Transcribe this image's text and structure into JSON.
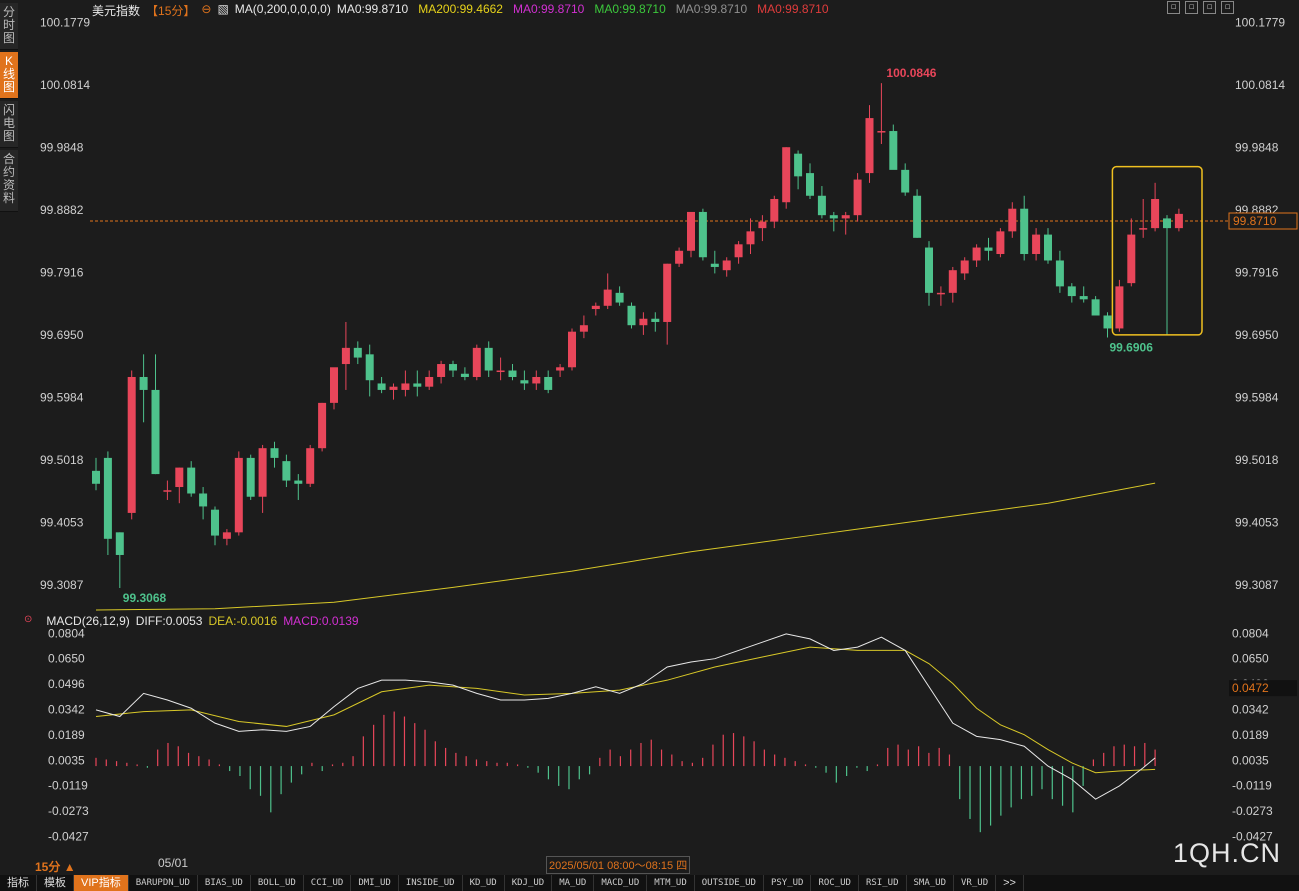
{
  "header": {
    "title": "美元指数",
    "timeframe": "【15分】",
    "ma_params": "MA(0,200,0,0,0,0)",
    "ma_values": [
      {
        "text": "MA0:99.8710",
        "color": "#e8e8e8"
      },
      {
        "text": "MA200:99.4662",
        "color": "#e6d21a"
      },
      {
        "text": "MA0:99.8710",
        "color": "#d230d2"
      },
      {
        "text": "MA0:99.8710",
        "color": "#3cc83c"
      },
      {
        "text": "MA0:99.8710",
        "color": "#909090"
      },
      {
        "text": "MA0:99.8710",
        "color": "#e03c3c"
      }
    ]
  },
  "side_tabs": [
    {
      "label": "分时图",
      "active": false
    },
    {
      "label": "K线图",
      "active": true
    },
    {
      "label": "闪电图",
      "active": false
    },
    {
      "label": "合约资料",
      "active": false
    }
  ],
  "window_controls": [
    "▫",
    "▫",
    "▫",
    "▫"
  ],
  "price_axis": {
    "left_ticks": [
      "100.1779",
      "100.0814",
      "99.9848",
      "99.8882",
      "99.7916",
      "99.6950",
      "99.5984",
      "99.5018",
      "99.4053",
      "99.3087"
    ],
    "right_ticks": [
      "100.1779",
      "100.0814",
      "99.9848",
      "99.8882",
      "99.7916",
      "99.6950",
      "99.5984",
      "99.5018",
      "99.4053",
      "99.3087"
    ],
    "current_price": "99.8710"
  },
  "annotations": {
    "high": "100.0846",
    "low": "99.6906",
    "low_left": "99.3068"
  },
  "macd_header": {
    "params": "MACD(26,12,9)",
    "diff": "DIFF:0.0053",
    "dea": "DEA:-0.0016",
    "macd": "MACD:0.0139"
  },
  "macd_axis": {
    "left_ticks": [
      "0.0804",
      "0.0650",
      "0.0496",
      "0.0342",
      "0.0189",
      "0.0035",
      "-0.0119",
      "-0.0273",
      "-0.0427"
    ],
    "right_ticks": [
      "0.0804",
      "0.0650",
      "0.0496",
      "0.0342",
      "0.0189",
      "0.0035",
      "-0.0119",
      "-0.0273",
      "-0.0427"
    ],
    "current": "0.0472"
  },
  "time_axis": {
    "tick": "05/01",
    "cursor": "2025/05/01 08:00～08:15 四"
  },
  "timeframe_label": "15分",
  "bottom_tabs": [
    {
      "label": "指标",
      "active": false,
      "mono": false
    },
    {
      "label": "模板",
      "active": false,
      "mono": false
    },
    {
      "label": "VIP指标",
      "active": true,
      "mono": false
    },
    {
      "label": "BARUPDN_UD",
      "active": false,
      "mono": true
    },
    {
      "label": "BIAS_UD",
      "active": false,
      "mono": true
    },
    {
      "label": "BOLL_UD",
      "active": false,
      "mono": true
    },
    {
      "label": "CCI_UD",
      "active": false,
      "mono": true
    },
    {
      "label": "DMI_UD",
      "active": false,
      "mono": true
    },
    {
      "label": "INSIDE_UD",
      "active": false,
      "mono": true
    },
    {
      "label": "KD_UD",
      "active": false,
      "mono": true
    },
    {
      "label": "KDJ_UD",
      "active": false,
      "mono": true
    },
    {
      "label": "MA_UD",
      "active": false,
      "mono": true
    },
    {
      "label": "MACD_UD",
      "active": false,
      "mono": true
    },
    {
      "label": "MTM_UD",
      "active": false,
      "mono": true
    },
    {
      "label": "OUTSIDE_UD",
      "active": false,
      "mono": true
    },
    {
      "label": "PSY_UD",
      "active": false,
      "mono": true
    },
    {
      "label": "ROC_UD",
      "active": false,
      "mono": true
    },
    {
      "label": "RSI_UD",
      "active": false,
      "mono": true
    },
    {
      "label": "SMA_UD",
      "active": false,
      "mono": true
    },
    {
      "label": "VR_UD",
      "active": false,
      "mono": true
    },
    {
      "label": ">>",
      "active": false,
      "mono": false
    }
  ],
  "watermark": "1QH.CN",
  "colors": {
    "up": "#e8465a",
    "down": "#4ec28c",
    "ma200": "#d8c828",
    "diff": "#e8e8e8",
    "dea": "#d8c828",
    "accent": "#e0731c",
    "highlight_box": "#f0c020"
  },
  "chart_data": [
    {
      "type": "candlestick",
      "title": "美元指数 15分",
      "ylim": [
        99.27,
        100.18
      ],
      "candles": [
        [
          99.485,
          99.505,
          99.455,
          99.465
        ],
        [
          99.505,
          99.515,
          99.355,
          99.38
        ],
        [
          99.39,
          99.39,
          99.304,
          99.355
        ],
        [
          99.42,
          99.64,
          99.41,
          99.63
        ],
        [
          99.63,
          99.665,
          99.56,
          99.61
        ],
        [
          99.61,
          99.665,
          99.48,
          99.48
        ],
        [
          99.455,
          99.47,
          99.44,
          99.455
        ],
        [
          99.46,
          99.49,
          99.435,
          99.49
        ],
        [
          99.49,
          99.5,
          99.445,
          99.45
        ],
        [
          99.45,
          99.46,
          99.41,
          99.43
        ],
        [
          99.425,
          99.43,
          99.37,
          99.385
        ],
        [
          99.38,
          99.395,
          99.37,
          99.39
        ],
        [
          99.39,
          99.515,
          99.385,
          99.505
        ],
        [
          99.505,
          99.51,
          99.44,
          99.445
        ],
        [
          99.445,
          99.525,
          99.42,
          99.52
        ],
        [
          99.52,
          99.53,
          99.49,
          99.505
        ],
        [
          99.5,
          99.51,
          99.46,
          99.47
        ],
        [
          99.47,
          99.48,
          99.44,
          99.465
        ],
        [
          99.465,
          99.525,
          99.46,
          99.52
        ],
        [
          99.52,
          99.59,
          99.515,
          99.59
        ],
        [
          99.59,
          99.64,
          99.58,
          99.645
        ],
        [
          99.65,
          99.715,
          99.61,
          99.675
        ],
        [
          99.675,
          99.685,
          99.65,
          99.66
        ],
        [
          99.665,
          99.68,
          99.6,
          99.625
        ],
        [
          99.62,
          99.63,
          99.605,
          99.61
        ],
        [
          99.61,
          99.62,
          99.595,
          99.615
        ],
        [
          99.61,
          99.64,
          99.6,
          99.62
        ],
        [
          99.62,
          99.64,
          99.6,
          99.615
        ],
        [
          99.615,
          99.64,
          99.61,
          99.63
        ],
        [
          99.63,
          99.655,
          99.62,
          99.65
        ],
        [
          99.65,
          99.655,
          99.63,
          99.64
        ],
        [
          99.635,
          99.645,
          99.625,
          99.63
        ],
        [
          99.63,
          99.68,
          99.625,
          99.675
        ],
        [
          99.675,
          99.685,
          99.63,
          99.64
        ],
        [
          99.64,
          99.66,
          99.625,
          99.64
        ],
        [
          99.64,
          99.65,
          99.625,
          99.63
        ],
        [
          99.625,
          99.64,
          99.61,
          99.62
        ],
        [
          99.62,
          99.64,
          99.61,
          99.63
        ],
        [
          99.63,
          99.64,
          99.605,
          99.61
        ],
        [
          99.64,
          99.65,
          99.63,
          99.645
        ],
        [
          99.645,
          99.705,
          99.64,
          99.7
        ],
        [
          99.7,
          99.725,
          99.69,
          99.71
        ],
        [
          99.735,
          99.745,
          99.725,
          99.74
        ],
        [
          99.74,
          99.79,
          99.735,
          99.765
        ],
        [
          99.76,
          99.77,
          99.74,
          99.745
        ],
        [
          99.74,
          99.745,
          99.705,
          99.71
        ],
        [
          99.71,
          99.73,
          99.695,
          99.72
        ],
        [
          99.72,
          99.73,
          99.7,
          99.715
        ],
        [
          99.715,
          99.805,
          99.68,
          99.805
        ],
        [
          99.805,
          99.83,
          99.8,
          99.825
        ],
        [
          99.825,
          99.885,
          99.815,
          99.885
        ],
        [
          99.885,
          99.89,
          99.81,
          99.815
        ],
        [
          99.805,
          99.825,
          99.79,
          99.8
        ],
        [
          99.795,
          99.815,
          99.785,
          99.81
        ],
        [
          99.815,
          99.84,
          99.805,
          99.835
        ],
        [
          99.835,
          99.875,
          99.82,
          99.855
        ],
        [
          99.86,
          99.88,
          99.84,
          99.87
        ],
        [
          99.87,
          99.91,
          99.86,
          99.905
        ],
        [
          99.9,
          99.985,
          99.89,
          99.985
        ],
        [
          99.975,
          99.98,
          99.92,
          99.94
        ],
        [
          99.945,
          99.96,
          99.905,
          99.91
        ],
        [
          99.91,
          99.925,
          99.875,
          99.88
        ],
        [
          99.88,
          99.885,
          99.855,
          99.875
        ],
        [
          99.875,
          99.885,
          99.85,
          99.88
        ],
        [
          99.88,
          99.945,
          99.87,
          99.935
        ],
        [
          99.945,
          100.05,
          99.93,
          100.03
        ],
        [
          100.01,
          100.084,
          99.99,
          100.01
        ],
        [
          100.01,
          100.02,
          99.955,
          99.95
        ],
        [
          99.95,
          99.96,
          99.91,
          99.915
        ],
        [
          99.91,
          99.92,
          99.845,
          99.845
        ],
        [
          99.83,
          99.84,
          99.74,
          99.76
        ],
        [
          99.76,
          99.77,
          99.74,
          99.76
        ],
        [
          99.76,
          99.8,
          99.745,
          99.795
        ],
        [
          99.79,
          99.815,
          99.78,
          99.81
        ],
        [
          99.81,
          99.835,
          99.8,
          99.83
        ],
        [
          99.83,
          99.845,
          99.81,
          99.825
        ],
        [
          99.82,
          99.86,
          99.815,
          99.855
        ],
        [
          99.855,
          99.9,
          99.845,
          99.89
        ],
        [
          99.89,
          99.91,
          99.81,
          99.82
        ],
        [
          99.82,
          99.86,
          99.81,
          99.85
        ],
        [
          99.85,
          99.86,
          99.805,
          99.81
        ],
        [
          99.81,
          99.825,
          99.76,
          99.77
        ],
        [
          99.77,
          99.775,
          99.745,
          99.755
        ],
        [
          99.755,
          99.77,
          99.745,
          99.75
        ],
        [
          99.75,
          99.755,
          99.725,
          99.725
        ],
        [
          99.725,
          99.73,
          99.691,
          99.705
        ],
        [
          99.705,
          99.78,
          99.7,
          99.77
        ],
        [
          99.775,
          99.875,
          99.77,
          99.85
        ],
        [
          99.86,
          99.905,
          99.845,
          99.86
        ],
        [
          99.86,
          99.93,
          99.855,
          99.905
        ],
        [
          99.875,
          99.88,
          99.695,
          99.86
        ],
        [
          99.86,
          99.89,
          99.855,
          99.882
        ]
      ]
    },
    {
      "type": "line",
      "name": "MA200",
      "points": [
        [
          0,
          99.27
        ],
        [
          10,
          99.272
        ],
        [
          20,
          99.282
        ],
        [
          30,
          99.305
        ],
        [
          40,
          99.33
        ],
        [
          50,
          99.36
        ],
        [
          60,
          99.385
        ],
        [
          70,
          99.41
        ],
        [
          80,
          99.435
        ],
        [
          89,
          99.466
        ]
      ]
    },
    {
      "type": "macd",
      "ylim": [
        -0.052,
        0.086
      ],
      "diff": [
        [
          0,
          0.034
        ],
        [
          2,
          0.03
        ],
        [
          4,
          0.044
        ],
        [
          6,
          0.04
        ],
        [
          8,
          0.035
        ],
        [
          10,
          0.026
        ],
        [
          12,
          0.021
        ],
        [
          14,
          0.022
        ],
        [
          16,
          0.021
        ],
        [
          18,
          0.024
        ],
        [
          20,
          0.036
        ],
        [
          22,
          0.047
        ],
        [
          24,
          0.052
        ],
        [
          26,
          0.052
        ],
        [
          28,
          0.051
        ],
        [
          30,
          0.049
        ],
        [
          32,
          0.044
        ],
        [
          34,
          0.04
        ],
        [
          36,
          0.04
        ],
        [
          38,
          0.041
        ],
        [
          40,
          0.044
        ],
        [
          42,
          0.048
        ],
        [
          44,
          0.044
        ],
        [
          46,
          0.05
        ],
        [
          48,
          0.06
        ],
        [
          50,
          0.063
        ],
        [
          52,
          0.065
        ],
        [
          54,
          0.07
        ],
        [
          56,
          0.075
        ],
        [
          58,
          0.08
        ],
        [
          60,
          0.077
        ],
        [
          62,
          0.07
        ],
        [
          64,
          0.072
        ],
        [
          66,
          0.078
        ],
        [
          68,
          0.07
        ],
        [
          70,
          0.048
        ],
        [
          72,
          0.026
        ],
        [
          74,
          0.018
        ],
        [
          76,
          0.016
        ],
        [
          78,
          0.012
        ],
        [
          80,
          0.0
        ],
        [
          82,
          -0.008
        ],
        [
          84,
          -0.02
        ],
        [
          86,
          -0.012
        ],
        [
          88,
          -0.001
        ],
        [
          89,
          0.005
        ]
      ],
      "dea": [
        [
          0,
          0.03
        ],
        [
          4,
          0.033
        ],
        [
          8,
          0.034
        ],
        [
          12,
          0.027
        ],
        [
          16,
          0.024
        ],
        [
          20,
          0.031
        ],
        [
          24,
          0.045
        ],
        [
          28,
          0.049
        ],
        [
          32,
          0.047
        ],
        [
          36,
          0.043
        ],
        [
          40,
          0.044
        ],
        [
          44,
          0.046
        ],
        [
          48,
          0.052
        ],
        [
          52,
          0.06
        ],
        [
          56,
          0.066
        ],
        [
          60,
          0.072
        ],
        [
          64,
          0.07
        ],
        [
          68,
          0.07
        ],
        [
          70,
          0.062
        ],
        [
          72,
          0.05
        ],
        [
          74,
          0.035
        ],
        [
          76,
          0.025
        ],
        [
          78,
          0.019
        ],
        [
          80,
          0.01
        ],
        [
          82,
          0.002
        ],
        [
          84,
          -0.004
        ],
        [
          86,
          -0.003
        ],
        [
          89,
          -0.002
        ]
      ],
      "histogram": [
        0.005,
        0.004,
        0.003,
        0.002,
        0.001,
        -0.001,
        0.01,
        0.014,
        0.012,
        0.008,
        0.006,
        0.004,
        0.001,
        -0.003,
        -0.006,
        -0.014,
        -0.018,
        -0.028,
        -0.017,
        -0.01,
        -0.005,
        0.002,
        -0.003,
        0.001,
        0.002,
        0.006,
        0.018,
        0.025,
        0.031,
        0.033,
        0.03,
        0.026,
        0.022,
        0.015,
        0.011,
        0.008,
        0.006,
        0.004,
        0.003,
        0.002,
        0.002,
        0.001,
        -0.001,
        -0.004,
        -0.008,
        -0.012,
        -0.014,
        -0.008,
        -0.005,
        0.005,
        0.01,
        0.006,
        0.01,
        0.014,
        0.016,
        0.01,
        0.007,
        0.003,
        0.002,
        0.005,
        0.013,
        0.019,
        0.02,
        0.018,
        0.015,
        0.01,
        0.007,
        0.005,
        0.003,
        0.001,
        -0.001,
        -0.004,
        -0.01,
        -0.006,
        -0.001,
        -0.003,
        0.001,
        0.011,
        0.013,
        0.01,
        0.012,
        0.008,
        0.011,
        0.007,
        -0.02,
        -0.032,
        -0.04,
        -0.036,
        -0.03,
        -0.025,
        -0.02,
        -0.018,
        -0.014,
        -0.02,
        -0.024,
        -0.028,
        -0.012,
        0.004,
        0.008,
        0.012,
        0.013,
        0.012,
        0.014,
        0.01
      ]
    }
  ]
}
